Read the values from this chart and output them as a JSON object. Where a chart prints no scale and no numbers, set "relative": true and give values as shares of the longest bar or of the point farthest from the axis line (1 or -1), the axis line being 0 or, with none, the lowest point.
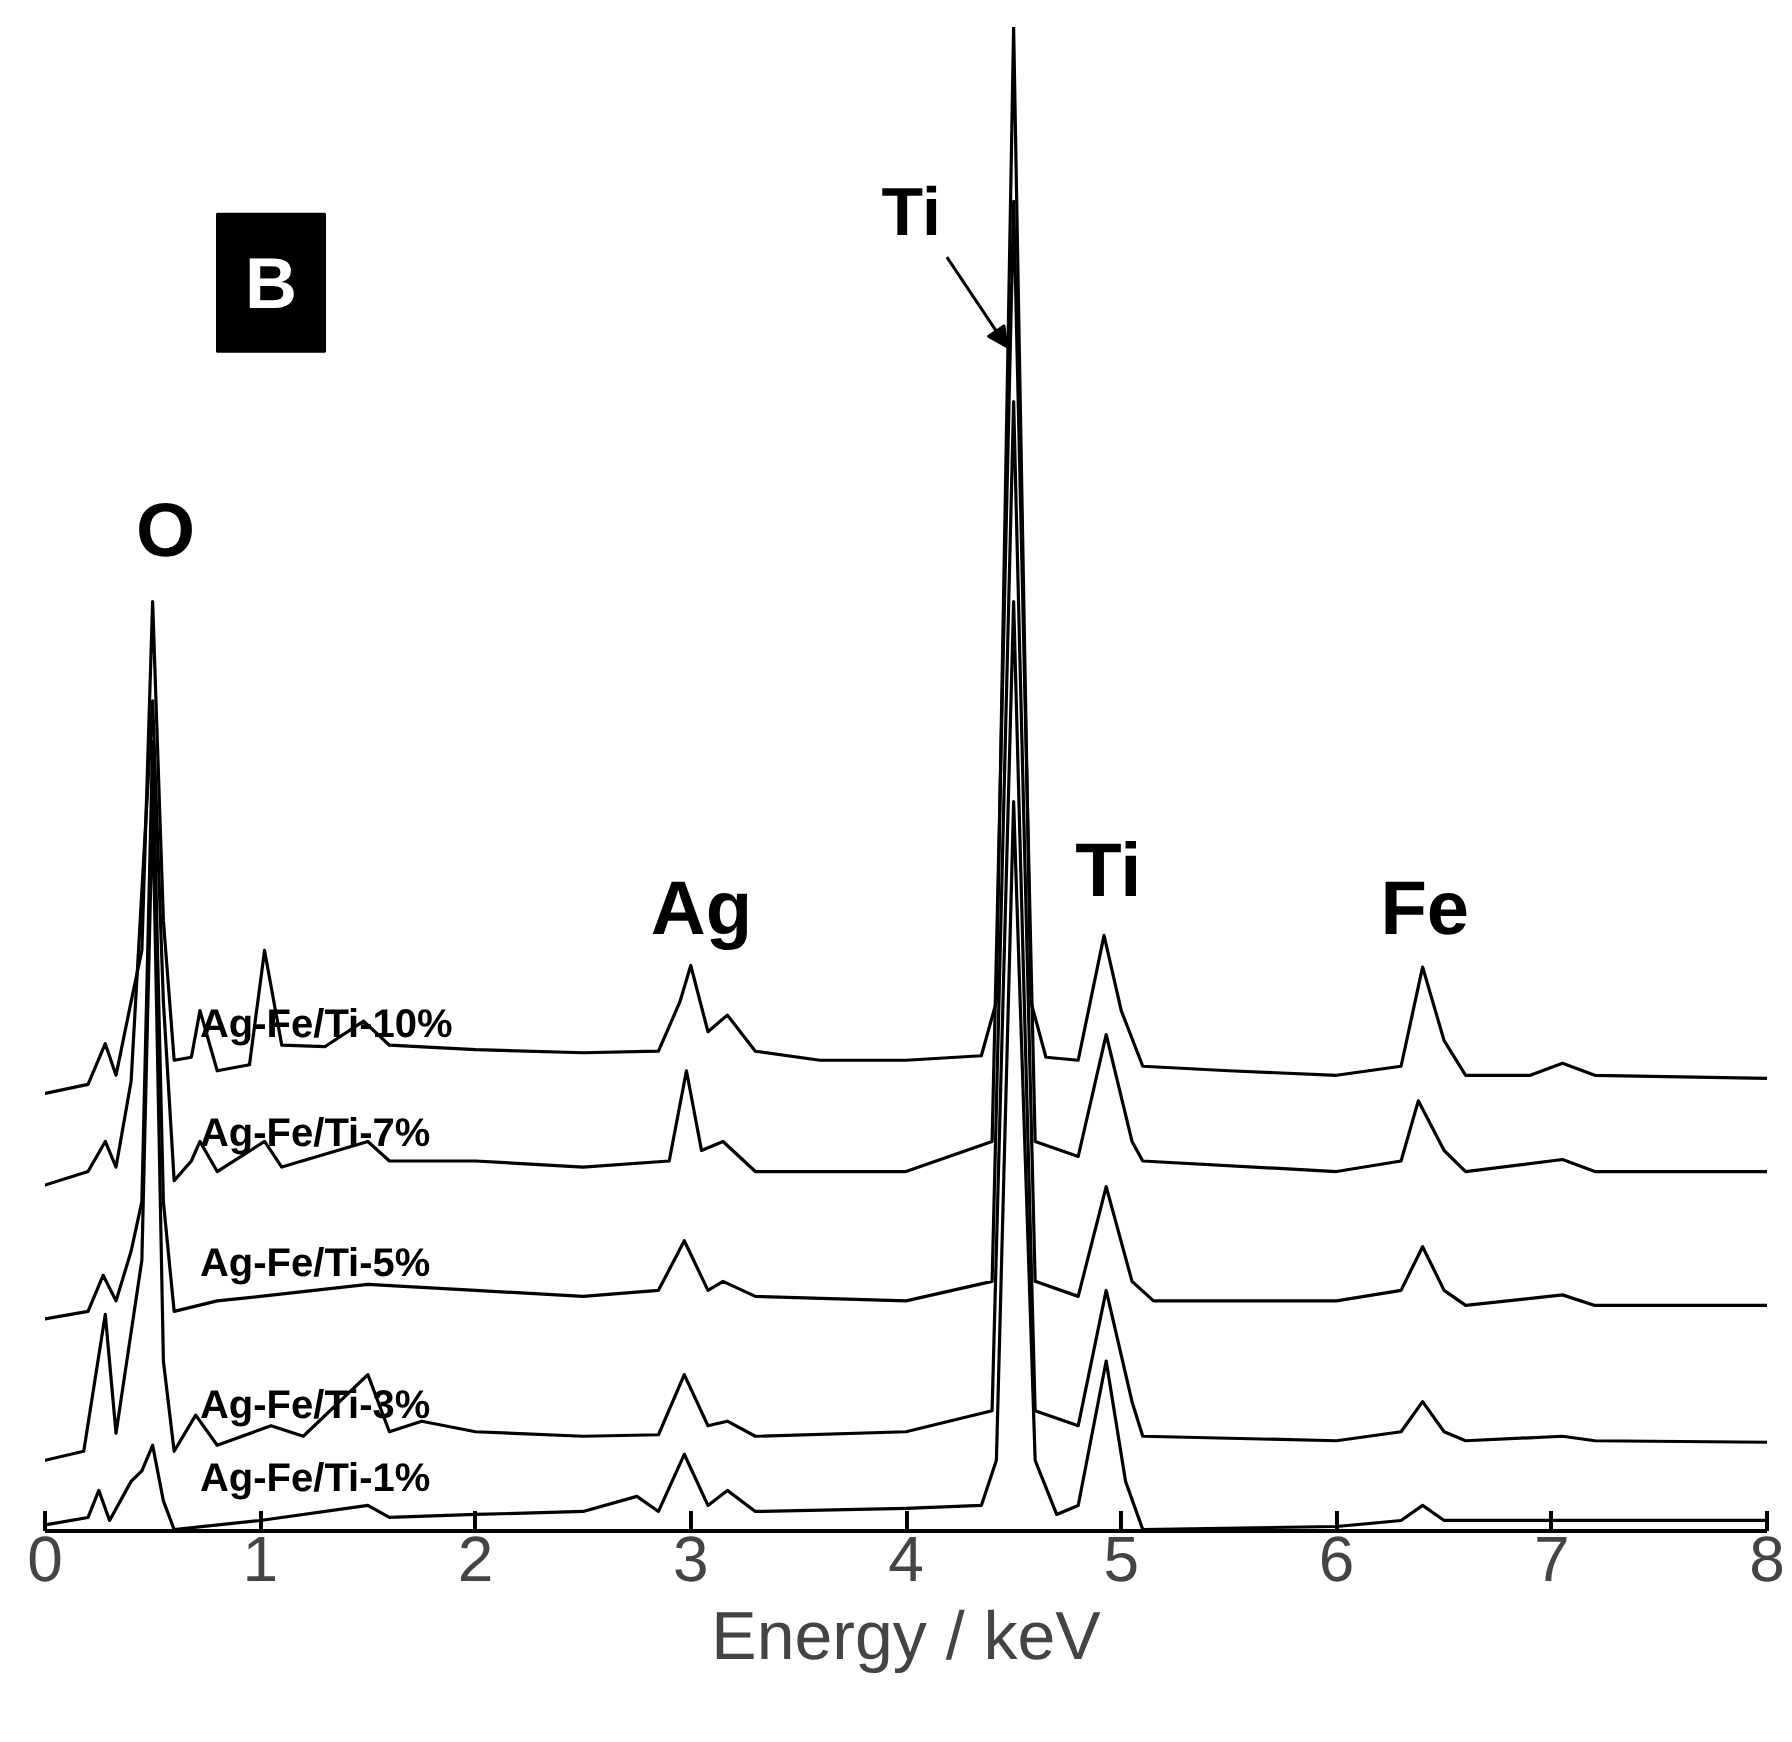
{
  "chart_data": {
    "type": "line",
    "relative": true,
    "xlabel": "Energy / keV",
    "xlim": [
      0,
      8
    ],
    "xticks": [
      0,
      1,
      2,
      3,
      4,
      5,
      6,
      7,
      8
    ],
    "grid": false,
    "marker": "none",
    "line_style": "solid",
    "annotations": [
      {
        "text": "Ti",
        "x": 4.47,
        "y": 0.787
      },
      "O",
      "Ag",
      "Ti",
      "Fe",
      "B"
    ],
    "series": [
      {
        "name": "Ag-Fe/Ti-10%",
        "color": "#000000",
        "x": [
          0,
          0.2,
          0.28,
          0.33,
          0.4,
          0.45,
          0.5,
          0.55,
          0.6,
          0.68,
          0.72,
          0.8,
          0.95,
          1.02,
          1.1,
          1.3,
          1.48,
          1.6,
          2.0,
          2.5,
          2.85,
          2.95,
          3.0,
          3.08,
          3.17,
          3.3,
          3.6,
          4.0,
          4.35,
          4.42,
          4.5,
          4.58,
          4.65,
          4.8,
          4.92,
          5.0,
          5.1,
          5.5,
          6.0,
          6.3,
          6.4,
          6.5,
          6.6,
          6.9,
          7.05,
          7.2,
          8.0
        ],
        "values": [
          0.291,
          0.297,
          0.324,
          0.303,
          0.352,
          0.386,
          0.618,
          0.406,
          0.313,
          0.315,
          0.346,
          0.306,
          0.31,
          0.386,
          0.323,
          0.322,
          0.339,
          0.323,
          0.32,
          0.318,
          0.319,
          0.352,
          0.376,
          0.332,
          0.343,
          0.319,
          0.313,
          0.313,
          0.316,
          0.352,
          1,
          0.352,
          0.315,
          0.313,
          0.396,
          0.346,
          0.309,
          0.306,
          0.303,
          0.309,
          0.375,
          0.326,
          0.303,
          0.303,
          0.311,
          0.303,
          0.301
        ]
      },
      {
        "name": "Ag-Fe/Ti-7%",
        "color": "#000000",
        "x": [
          0,
          0.2,
          0.28,
          0.33,
          0.4,
          0.5,
          0.55,
          0.6,
          0.68,
          0.72,
          0.8,
          1.02,
          1.1,
          1.5,
          1.6,
          2.0,
          2.5,
          2.9,
          2.98,
          3.05,
          3.15,
          3.3,
          4.0,
          4.4,
          4.5,
          4.6,
          4.8,
          4.93,
          5.05,
          5.1,
          6.0,
          6.3,
          6.38,
          6.5,
          6.6,
          7.05,
          7.2,
          8.0
        ],
        "values": [
          0.23,
          0.239,
          0.259,
          0.242,
          0.299,
          0.552,
          0.352,
          0.233,
          0.246,
          0.259,
          0.239,
          0.259,
          0.242,
          0.259,
          0.246,
          0.246,
          0.242,
          0.246,
          0.306,
          0.253,
          0.259,
          0.239,
          0.239,
          0.259,
          0.884,
          0.259,
          0.249,
          0.33,
          0.259,
          0.246,
          0.239,
          0.246,
          0.286,
          0.253,
          0.239,
          0.247,
          0.239,
          0.239
        ]
      },
      {
        "name": "Ag-Fe/Ti-5%",
        "color": "#000000",
        "x": [
          0,
          0.2,
          0.27,
          0.33,
          0.4,
          0.45,
          0.5,
          0.55,
          0.6,
          0.8,
          1.0,
          1.5,
          2.0,
          2.5,
          2.85,
          2.97,
          3.08,
          3.15,
          3.3,
          4.0,
          4.4,
          4.5,
          4.6,
          4.8,
          4.93,
          5.05,
          5.15,
          6.0,
          6.3,
          6.4,
          6.5,
          6.6,
          7.05,
          7.2,
          8.0
        ],
        "values": [
          0.141,
          0.146,
          0.17,
          0.153,
          0.186,
          0.219,
          0.525,
          0.219,
          0.146,
          0.153,
          0.156,
          0.164,
          0.16,
          0.156,
          0.16,
          0.193,
          0.16,
          0.166,
          0.156,
          0.153,
          0.166,
          0.751,
          0.166,
          0.156,
          0.229,
          0.166,
          0.153,
          0.153,
          0.16,
          0.189,
          0.16,
          0.15,
          0.157,
          0.15,
          0.15
        ]
      },
      {
        "name": "Ag-Fe/Ti-3%",
        "color": "#000000",
        "x": [
          0,
          0.18,
          0.28,
          0.33,
          0.45,
          0.5,
          0.55,
          0.6,
          0.7,
          0.8,
          1.05,
          1.2,
          1.5,
          1.6,
          1.75,
          2.0,
          2.5,
          2.85,
          2.97,
          3.08,
          3.17,
          3.3,
          4.0,
          4.4,
          4.5,
          4.6,
          4.8,
          4.93,
          5.05,
          5.1,
          6.0,
          6.3,
          6.4,
          6.5,
          6.6,
          7.05,
          7.2,
          8.0
        ],
        "values": [
          0.047,
          0.053,
          0.144,
          0.065,
          0.18,
          0.485,
          0.113,
          0.053,
          0.077,
          0.057,
          0.07,
          0.063,
          0.104,
          0.066,
          0.073,
          0.066,
          0.063,
          0.064,
          0.104,
          0.07,
          0.073,
          0.063,
          0.066,
          0.08,
          0.618,
          0.08,
          0.07,
          0.16,
          0.086,
          0.063,
          0.06,
          0.066,
          0.086,
          0.066,
          0.06,
          0.063,
          0.06,
          0.059
        ]
      },
      {
        "name": "Ag-Fe/Ti-1%",
        "color": "#000000",
        "x": [
          0,
          0.2,
          0.25,
          0.3,
          0.4,
          0.45,
          0.5,
          0.55,
          0.6,
          1.0,
          1.5,
          1.6,
          2.0,
          2.5,
          2.75,
          2.85,
          2.97,
          3.08,
          3.17,
          3.3,
          4.0,
          4.35,
          4.42,
          4.5,
          4.6,
          4.7,
          4.8,
          4.93,
          5.02,
          5.1,
          6.0,
          6.3,
          6.4,
          6.5,
          8.0
        ],
        "values": [
          0.004,
          0.009,
          0.027,
          0.007,
          0.033,
          0.04,
          0.057,
          0.02,
          0.001,
          0.007,
          0.017,
          0.009,
          0.011,
          0.013,
          0.023,
          0.013,
          0.051,
          0.017,
          0.027,
          0.013,
          0.015,
          0.017,
          0.047,
          0.485,
          0.047,
          0.011,
          0.017,
          0.113,
          0.033,
          0.001,
          0.003,
          0.007,
          0.017,
          0.007,
          0.007
        ]
      }
    ]
  }
}
